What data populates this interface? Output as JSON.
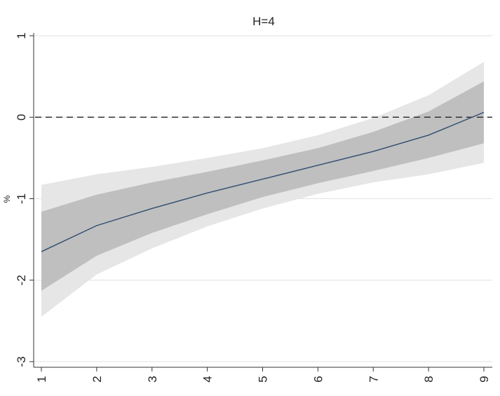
{
  "chart_data": {
    "type": "line",
    "title": "H=4",
    "xlabel": "",
    "ylabel": "%",
    "xlim": [
      1,
      9
    ],
    "ylim": [
      -3,
      1
    ],
    "x_ticks": [
      1,
      2,
      3,
      4,
      5,
      6,
      7,
      8,
      9
    ],
    "y_ticks": [
      1,
      0,
      -1,
      -2,
      -3
    ],
    "x_tick_labels": [
      "1",
      "2",
      "3",
      "4",
      "5",
      "6",
      "7",
      "8",
      "9"
    ],
    "y_tick_labels": [
      "1",
      "0",
      "-1",
      "-2",
      "-3"
    ],
    "grid": "horizontal",
    "reference_line": {
      "y": 0,
      "style": "dashed"
    },
    "x": [
      1,
      2,
      3,
      4,
      5,
      6,
      7,
      8,
      9
    ],
    "series": [
      {
        "values": [
          -1.65,
          -1.33,
          -1.12,
          -0.93,
          -0.76,
          -0.59,
          -0.42,
          -0.22,
          0.06
        ],
        "color": "#2f4d70"
      }
    ],
    "bands": [
      {
        "level": "outer",
        "lower": [
          -2.45,
          -1.93,
          -1.61,
          -1.34,
          -1.12,
          -0.94,
          -0.8,
          -0.7,
          -0.56
        ],
        "upper": [
          -0.83,
          -0.7,
          -0.61,
          -0.5,
          -0.38,
          -0.22,
          -0.01,
          0.27,
          0.68
        ],
        "color": "#e6e6e6"
      },
      {
        "level": "inner",
        "lower": [
          -2.13,
          -1.7,
          -1.42,
          -1.19,
          -0.98,
          -0.81,
          -0.66,
          -0.5,
          -0.32
        ],
        "upper": [
          -1.16,
          -0.95,
          -0.8,
          -0.67,
          -0.53,
          -0.38,
          -0.18,
          0.07,
          0.44
        ],
        "color": "#bfbfbf"
      }
    ]
  }
}
